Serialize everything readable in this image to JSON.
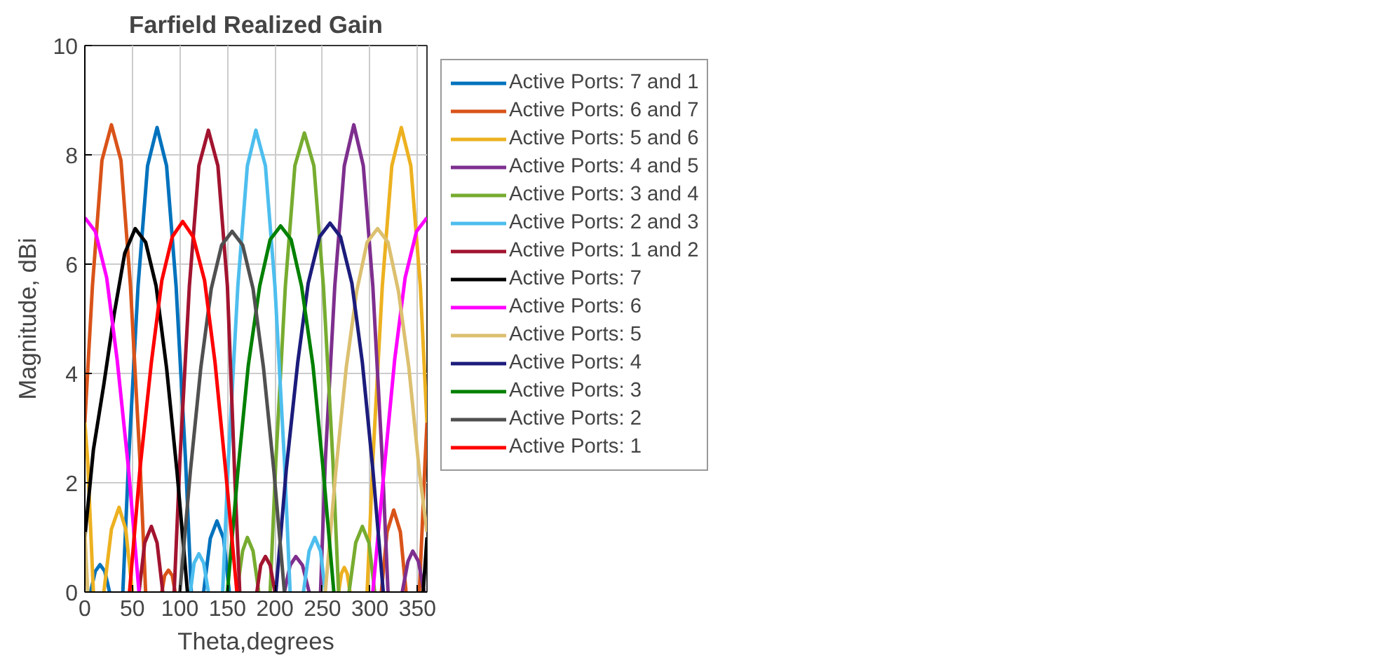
{
  "chart_data": {
    "type": "line",
    "title": "Farfield Realized Gain",
    "xlabel": "Theta,degrees",
    "ylabel": "Magnitude, dBi",
    "xlim": [
      0,
      360
    ],
    "xticks": [
      0,
      50,
      100,
      150,
      200,
      250,
      300,
      350
    ],
    "ylim": [
      0,
      10
    ],
    "yticks": [
      0,
      2,
      4,
      6,
      8,
      10
    ],
    "grid": true,
    "legend": "right",
    "marker": "none",
    "line_style": "solid",
    "series": [
      {
        "name": "Active Ports: 7 and 1",
        "color": "#0072bd",
        "x": [
          6,
          11,
          16,
          21,
          26,
          33,
          40,
          46,
          56,
          66,
          76,
          86,
          96,
          106,
          112,
          118,
          125,
          132,
          139,
          146,
          152
        ],
        "values": [
          0,
          0.38,
          0.5,
          0.38,
          0,
          null,
          0,
          2.4,
          5.6,
          7.8,
          8.5,
          7.8,
          5.6,
          2.4,
          0,
          null,
          0,
          0.98,
          1.3,
          0.98,
          0
        ]
      },
      {
        "name": "Active Ports: 6 and 7",
        "color": "#d95319",
        "x": [
          0,
          8,
          18,
          28,
          38,
          48,
          58,
          64,
          70,
          81,
          84,
          88,
          92,
          95,
          200,
          312,
          318,
          325,
          332,
          338,
          345,
          352,
          358,
          360
        ],
        "values": [
          3.1,
          5.6,
          7.9,
          8.55,
          7.9,
          5.6,
          2.4,
          0,
          null,
          0,
          0.3,
          0.4,
          0.3,
          0,
          null,
          0,
          1.1,
          1.5,
          1.1,
          0,
          null,
          0,
          2.4,
          3.1
        ]
      },
      {
        "name": "Active Ports: 5 and 6",
        "color": "#edb120",
        "x": [
          0,
          3,
          9,
          15,
          20,
          28,
          36,
          43,
          50,
          200,
          267,
          270,
          273,
          276,
          279,
          288,
          297,
          303,
          313,
          323,
          333,
          343,
          353,
          360
        ],
        "values": [
          3.1,
          2.4,
          0,
          null,
          0,
          1.15,
          1.55,
          1.15,
          0,
          null,
          0,
          0.34,
          0.45,
          0.34,
          0,
          null,
          0,
          2.4,
          5.6,
          7.8,
          8.5,
          7.8,
          5.6,
          3.1
        ]
      },
      {
        "name": "Active Ports: 4 and 5",
        "color": "#7e2f8e",
        "x": [
          210,
          216,
          222,
          229,
          236,
          242,
          248,
          253,
          263,
          273,
          283,
          293,
          303,
          313,
          319,
          326,
          334,
          340,
          345,
          351,
          357
        ],
        "values": [
          0,
          0.49,
          0.65,
          0.49,
          0,
          null,
          0,
          2.4,
          5.6,
          7.8,
          8.55,
          7.8,
          5.6,
          2.4,
          0,
          null,
          0,
          0.56,
          0.75,
          0.56,
          0
        ]
      },
      {
        "name": "Active Ports: 3 and 4",
        "color": "#77ac30",
        "x": [
          160,
          166,
          171,
          177,
          183,
          189,
          195,
          201,
          211,
          221,
          231,
          241,
          251,
          261,
          267,
          272,
          278,
          285,
          292,
          299,
          305
        ],
        "values": [
          0,
          0.75,
          1.0,
          0.75,
          0,
          null,
          0,
          2.4,
          5.6,
          7.8,
          8.4,
          7.8,
          5.6,
          2.4,
          0,
          null,
          0,
          0.9,
          1.2,
          0.9,
          0
        ]
      },
      {
        "name": "Active Ports: 2 and 3",
        "color": "#4dbeee",
        "x": [
          111,
          115,
          120,
          125,
          130,
          138,
          145,
          151,
          161,
          171,
          180,
          190,
          200,
          210,
          216,
          223,
          230,
          236,
          242,
          248,
          253
        ],
        "values": [
          0,
          0.53,
          0.7,
          0.53,
          0,
          null,
          0,
          2.4,
          5.6,
          7.8,
          8.45,
          7.8,
          5.6,
          2.4,
          0,
          null,
          0,
          0.75,
          1.0,
          0.75,
          0
        ]
      },
      {
        "name": "Active Ports: 1 and 2",
        "color": "#a2142f",
        "x": [
          57,
          63,
          70,
          76,
          82,
          88,
          94,
          100,
          110,
          120,
          130,
          140,
          150,
          158,
          163,
          172,
          181,
          185,
          190,
          195,
          200
        ],
        "values": [
          0,
          0.9,
          1.2,
          0.9,
          0,
          null,
          0,
          2.4,
          5.6,
          7.8,
          8.45,
          7.8,
          5.6,
          2.0,
          0,
          null,
          0,
          0.49,
          0.65,
          0.49,
          0
        ]
      },
      {
        "name": "Active Ports: 7",
        "color": "#000000",
        "x": [
          0,
          9,
          20,
          31,
          42,
          53,
          64,
          75,
          86,
          97,
          108,
          200,
          356,
          360
        ],
        "values": [
          1.0,
          2.6,
          3.8,
          5.1,
          6.2,
          6.65,
          6.4,
          5.6,
          4.1,
          2.2,
          0,
          null,
          0,
          1.0
        ]
      },
      {
        "name": "Active Ports: 6",
        "color": "#ff00ff",
        "x": [
          0,
          11,
          23,
          34,
          46,
          57,
          200,
          303,
          315,
          326,
          337,
          349,
          360
        ],
        "values": [
          6.85,
          6.6,
          5.75,
          4.25,
          2.25,
          0,
          null,
          0,
          2.25,
          4.25,
          5.75,
          6.6,
          6.85
        ]
      },
      {
        "name": "Active Ports: 5",
        "color": "#dcc070",
        "x": [
          0,
          3,
          100,
          253,
          264,
          275,
          286,
          297,
          308,
          319,
          330,
          341,
          352,
          360
        ],
        "values": [
          1.1,
          0,
          null,
          0,
          2.2,
          4.1,
          5.5,
          6.4,
          6.65,
          6.4,
          5.5,
          4.1,
          2.2,
          1.1
        ]
      },
      {
        "name": "Active Ports: 4",
        "color": "#1c1c7c",
        "x": [
          201,
          212,
          224,
          235,
          247,
          258,
          269,
          281,
          292,
          303,
          314
        ],
        "values": [
          0,
          2.25,
          4.2,
          5.65,
          6.5,
          6.75,
          6.5,
          5.65,
          4.2,
          2.25,
          0
        ]
      },
      {
        "name": "Active Ports: 3",
        "color": "#008000",
        "x": [
          150,
          161,
          172,
          184,
          195,
          206,
          217,
          228,
          240,
          251,
          262
        ],
        "values": [
          0,
          2.2,
          4.15,
          5.6,
          6.45,
          6.7,
          6.45,
          5.6,
          4.15,
          2.2,
          0
        ]
      },
      {
        "name": "Active Ports: 2",
        "color": "#505050",
        "x": [
          100,
          111,
          122,
          133,
          144,
          155,
          166,
          177,
          188,
          199,
          210
        ],
        "values": [
          0,
          2.2,
          4.1,
          5.55,
          6.35,
          6.6,
          6.35,
          5.55,
          4.1,
          2.2,
          0
        ]
      },
      {
        "name": "Active Ports: 1",
        "color": "#ff0000",
        "x": [
          47,
          58,
          70,
          81,
          92,
          103,
          114,
          126,
          137,
          148,
          160
        ],
        "values": [
          0,
          2.25,
          4.2,
          5.7,
          6.5,
          6.78,
          6.5,
          5.7,
          4.2,
          2.25,
          0
        ]
      }
    ]
  }
}
